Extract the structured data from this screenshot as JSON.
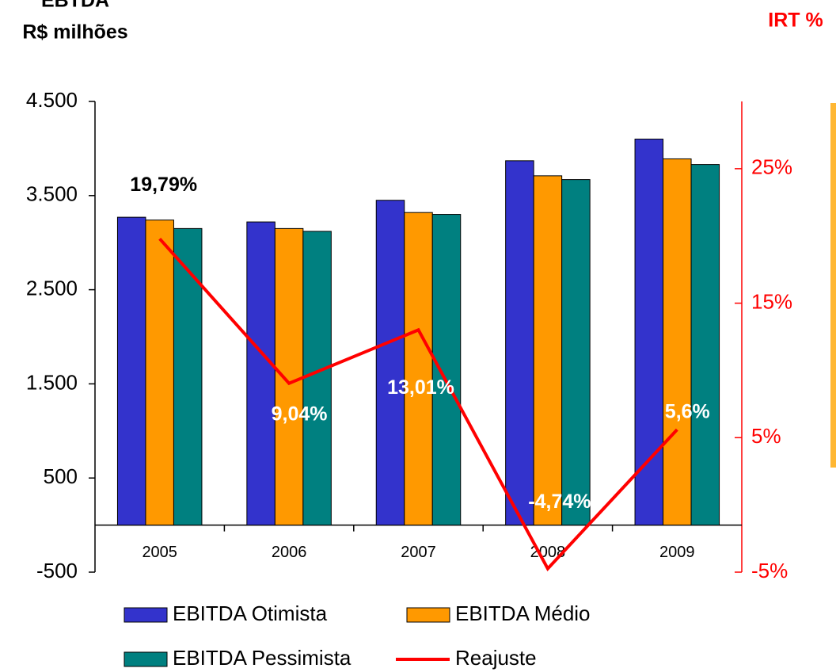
{
  "chart_data": {
    "type": "bar",
    "title": "EBTDA",
    "subtitle": "R$ milhões",
    "y2_label": "IRT %",
    "categories": [
      "2005",
      "2006",
      "2007",
      "2008",
      "2009"
    ],
    "series": [
      {
        "name": "EBITDA Otimista",
        "color": "#3333cc",
        "values": [
          3270,
          3220,
          3450,
          3870,
          4100
        ]
      },
      {
        "name": "EBITDA Médio",
        "color": "#ff9900",
        "values": [
          3240,
          3150,
          3320,
          3710,
          3890
        ]
      },
      {
        "name": "EBITDA Pessimista",
        "color": "#008080",
        "values": [
          3150,
          3120,
          3300,
          3670,
          3830
        ]
      },
      {
        "name": "Reajuste",
        "color": "#ff0000",
        "type": "line",
        "axis": "y2",
        "values": [
          19.79,
          9.04,
          13.01,
          -4.74,
          5.6
        ],
        "value_labels": [
          "19,79%",
          "9,04%",
          "13,01%",
          "-4,74%",
          "5,6%"
        ]
      }
    ],
    "ylim": [
      -500,
      4500
    ],
    "yticks": [
      -500,
      500,
      {
        "value": 1500,
        "label": "1.500"
      },
      {
        "value": 2500,
        "label": "2.500"
      },
      {
        "value": 3500,
        "label": "3.500"
      },
      {
        "value": 4500,
        "label": "4.500"
      }
    ],
    "y2lim": [
      -5,
      30
    ],
    "y2ticks": [
      {
        "value": -5,
        "label": "-5%"
      },
      {
        "value": 5,
        "label": "5%"
      },
      {
        "value": 15,
        "label": "15%"
      },
      {
        "value": 25,
        "label": "25%"
      }
    ]
  }
}
